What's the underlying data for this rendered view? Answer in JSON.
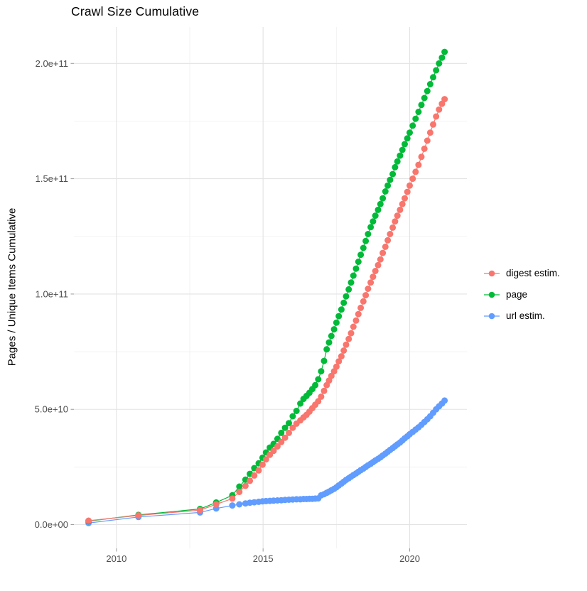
{
  "title": "Crawl Size Cumulative",
  "axes": {
    "x": {
      "domain": [
        2008.55,
        2021.95
      ],
      "ticks": [
        2010,
        2015,
        2020
      ],
      "tick_labels": [
        "2010",
        "2015",
        "2020"
      ],
      "minor_ticks": [
        2012.5,
        2017.5
      ]
    },
    "y": {
      "label": "Pages / Unique Items Cumulative",
      "unit": "billion (1e9)",
      "domain": [
        -10.3,
        215.8
      ],
      "ticks": [
        0,
        50,
        100,
        150,
        200
      ],
      "tick_labels": [
        "0.0e+00",
        "5.0e+10",
        "1.0e+11",
        "1.5e+11",
        "2.0e+11"
      ],
      "minor_ticks": [
        25,
        75,
        125,
        175
      ]
    }
  },
  "legend": {
    "position": "right",
    "items": [
      {
        "label": "digest estim.",
        "color": "#F8766D",
        "key": "digest"
      },
      {
        "label": "page",
        "color": "#00BA38",
        "key": "page"
      },
      {
        "label": "url estim.",
        "color": "#619CFF",
        "key": "url"
      }
    ]
  },
  "colors": {
    "digest": "#F8766D",
    "page": "#00BA38",
    "url": "#619CFF",
    "grid_major": "#e3e3e3",
    "grid_minor": "#f1f1f1",
    "tick": "#999999",
    "tick_text": "#4d4d4d"
  },
  "chart_data": {
    "type": "scatter",
    "title": "Crawl Size Cumulative",
    "xlabel": "",
    "ylabel": "Pages / Unique Items Cumulative",
    "x_unit": "year",
    "value_unit": "billion pages / items (1e9)",
    "xlim": [
      2008.55,
      2021.95
    ],
    "ylim_displayed": [
      "0.0e+00",
      "2.0e+11"
    ],
    "grid": true,
    "legend_position": "right",
    "draw_order": [
      "url",
      "page",
      "digest"
    ],
    "series": [
      {
        "name": "page",
        "color": "#00BA38",
        "points": [
          [
            2009.05,
            1.5
          ],
          [
            2010.75,
            4.2
          ],
          [
            2012.85,
            6.8
          ],
          [
            2013.4,
            9.6
          ],
          [
            2013.95,
            12.7
          ],
          [
            2014.19,
            16.5
          ],
          [
            2014.4,
            19.5
          ],
          [
            2014.55,
            22.0
          ],
          [
            2014.7,
            24.5
          ],
          [
            2014.85,
            26.6
          ],
          [
            2014.98,
            29.0
          ],
          [
            2015.1,
            31.3
          ],
          [
            2015.23,
            33.4
          ],
          [
            2015.36,
            35.0
          ],
          [
            2015.49,
            37.2
          ],
          [
            2015.62,
            39.8
          ],
          [
            2015.75,
            42.0
          ],
          [
            2015.88,
            44.0
          ],
          [
            2016.01,
            47.0
          ],
          [
            2016.14,
            49.3
          ],
          [
            2016.27,
            52.5
          ],
          [
            2016.38,
            54.5
          ],
          [
            2016.48,
            55.8
          ],
          [
            2016.58,
            57.2
          ],
          [
            2016.68,
            58.8
          ],
          [
            2016.78,
            60.5
          ],
          [
            2016.88,
            63.0
          ],
          [
            2016.98,
            66.5
          ],
          [
            2017.08,
            71.0
          ],
          [
            2017.17,
            76.0
          ],
          [
            2017.25,
            79.0
          ],
          [
            2017.33,
            81.8
          ],
          [
            2017.42,
            84.7
          ],
          [
            2017.5,
            87.6
          ],
          [
            2017.58,
            90.4
          ],
          [
            2017.67,
            93.3
          ],
          [
            2017.75,
            96.2
          ],
          [
            2017.83,
            99.0
          ],
          [
            2017.92,
            102.0
          ],
          [
            2018.0,
            105.0
          ],
          [
            2018.08,
            108.0
          ],
          [
            2018.17,
            111.0
          ],
          [
            2018.25,
            114.0
          ],
          [
            2018.33,
            117.0
          ],
          [
            2018.42,
            120.0
          ],
          [
            2018.5,
            123.0
          ],
          [
            2018.58,
            126.0
          ],
          [
            2018.67,
            129.0
          ],
          [
            2018.75,
            131.5
          ],
          [
            2018.83,
            134.0
          ],
          [
            2018.92,
            136.5
          ],
          [
            2019.0,
            139.0
          ],
          [
            2019.08,
            141.5
          ],
          [
            2019.17,
            144.5
          ],
          [
            2019.25,
            147.0
          ],
          [
            2019.33,
            149.5
          ],
          [
            2019.42,
            152.0
          ],
          [
            2019.5,
            155.0
          ],
          [
            2019.58,
            157.5
          ],
          [
            2019.67,
            160.0
          ],
          [
            2019.75,
            162.5
          ],
          [
            2019.83,
            165.0
          ],
          [
            2019.92,
            167.5
          ],
          [
            2020.0,
            170.0
          ],
          [
            2020.1,
            173.0
          ],
          [
            2020.2,
            176.0
          ],
          [
            2020.3,
            179.0
          ],
          [
            2020.4,
            182.0
          ],
          [
            2020.5,
            185.0
          ],
          [
            2020.6,
            188.0
          ],
          [
            2020.7,
            191.0
          ],
          [
            2020.8,
            194.0
          ],
          [
            2020.9,
            197.0
          ],
          [
            2021.0,
            200.0
          ],
          [
            2021.1,
            202.5
          ],
          [
            2021.19,
            205.0
          ]
        ]
      },
      {
        "name": "digest estim.",
        "color": "#F8766D",
        "points": [
          [
            2009.05,
            1.7
          ],
          [
            2010.75,
            4.0
          ],
          [
            2012.85,
            6.3
          ],
          [
            2013.4,
            8.8
          ],
          [
            2013.95,
            11.3
          ],
          [
            2014.19,
            14.2
          ],
          [
            2014.4,
            16.8
          ],
          [
            2014.55,
            19.0
          ],
          [
            2014.7,
            21.3
          ],
          [
            2014.85,
            23.5
          ],
          [
            2014.98,
            26.0
          ],
          [
            2015.1,
            28.3
          ],
          [
            2015.23,
            30.3
          ],
          [
            2015.36,
            32.0
          ],
          [
            2015.49,
            33.9
          ],
          [
            2015.62,
            35.8
          ],
          [
            2015.75,
            37.7
          ],
          [
            2015.88,
            39.8
          ],
          [
            2016.01,
            42.0
          ],
          [
            2016.14,
            43.8
          ],
          [
            2016.27,
            45.2
          ],
          [
            2016.38,
            46.5
          ],
          [
            2016.48,
            47.6
          ],
          [
            2016.58,
            49.0
          ],
          [
            2016.68,
            50.5
          ],
          [
            2016.78,
            52.0
          ],
          [
            2016.88,
            53.5
          ],
          [
            2016.98,
            55.5
          ],
          [
            2017.08,
            58.0
          ],
          [
            2017.17,
            60.5
          ],
          [
            2017.25,
            62.5
          ],
          [
            2017.33,
            64.5
          ],
          [
            2017.42,
            66.5
          ],
          [
            2017.5,
            68.5
          ],
          [
            2017.58,
            70.8
          ],
          [
            2017.67,
            73.0
          ],
          [
            2017.75,
            75.5
          ],
          [
            2017.83,
            78.0
          ],
          [
            2017.92,
            80.5
          ],
          [
            2018.0,
            83.0
          ],
          [
            2018.08,
            85.8
          ],
          [
            2018.17,
            88.5
          ],
          [
            2018.25,
            91.3
          ],
          [
            2018.33,
            94.0
          ],
          [
            2018.42,
            96.8
          ],
          [
            2018.5,
            99.5
          ],
          [
            2018.58,
            102.3
          ],
          [
            2018.67,
            105.0
          ],
          [
            2018.75,
            107.5
          ],
          [
            2018.83,
            110.0
          ],
          [
            2018.92,
            112.5
          ],
          [
            2019.0,
            115.0
          ],
          [
            2019.08,
            117.8
          ],
          [
            2019.17,
            120.5
          ],
          [
            2019.25,
            123.3
          ],
          [
            2019.33,
            126.0
          ],
          [
            2019.42,
            128.8
          ],
          [
            2019.5,
            131.5
          ],
          [
            2019.58,
            134.0
          ],
          [
            2019.67,
            136.5
          ],
          [
            2019.75,
            139.0
          ],
          [
            2019.83,
            141.5
          ],
          [
            2019.92,
            144.3
          ],
          [
            2020.0,
            147.0
          ],
          [
            2020.1,
            150.0
          ],
          [
            2020.2,
            153.0
          ],
          [
            2020.3,
            156.0
          ],
          [
            2020.4,
            159.5
          ],
          [
            2020.5,
            163.0
          ],
          [
            2020.6,
            166.5
          ],
          [
            2020.7,
            170.0
          ],
          [
            2020.8,
            173.5
          ],
          [
            2020.9,
            177.0
          ],
          [
            2021.0,
            180.0
          ],
          [
            2021.1,
            182.5
          ],
          [
            2021.19,
            184.5
          ]
        ]
      },
      {
        "name": "url estim.",
        "color": "#619CFF",
        "points": [
          [
            2009.05,
            0.7
          ],
          [
            2010.75,
            3.3
          ],
          [
            2012.85,
            5.3
          ],
          [
            2013.4,
            7.0
          ],
          [
            2013.95,
            8.3
          ],
          [
            2014.19,
            8.8
          ],
          [
            2014.4,
            9.2
          ],
          [
            2014.55,
            9.5
          ],
          [
            2014.7,
            9.7
          ],
          [
            2014.85,
            9.9
          ],
          [
            2014.98,
            10.1
          ],
          [
            2015.1,
            10.2
          ],
          [
            2015.23,
            10.3
          ],
          [
            2015.36,
            10.4
          ],
          [
            2015.49,
            10.5
          ],
          [
            2015.62,
            10.6
          ],
          [
            2015.75,
            10.7
          ],
          [
            2015.88,
            10.8
          ],
          [
            2016.01,
            10.9
          ],
          [
            2016.14,
            11.0
          ],
          [
            2016.27,
            11.0
          ],
          [
            2016.38,
            11.1
          ],
          [
            2016.48,
            11.1
          ],
          [
            2016.58,
            11.2
          ],
          [
            2016.68,
            11.2
          ],
          [
            2016.78,
            11.3
          ],
          [
            2016.88,
            11.4
          ],
          [
            2016.98,
            12.7
          ],
          [
            2017.08,
            13.2
          ],
          [
            2017.17,
            13.8
          ],
          [
            2017.25,
            14.3
          ],
          [
            2017.33,
            14.9
          ],
          [
            2017.42,
            15.5
          ],
          [
            2017.5,
            16.2
          ],
          [
            2017.58,
            17.0
          ],
          [
            2017.67,
            17.8
          ],
          [
            2017.75,
            18.6
          ],
          [
            2017.83,
            19.4
          ],
          [
            2017.92,
            20.1
          ],
          [
            2018.0,
            20.8
          ],
          [
            2018.08,
            21.5
          ],
          [
            2018.17,
            22.2
          ],
          [
            2018.25,
            22.9
          ],
          [
            2018.33,
            23.6
          ],
          [
            2018.42,
            24.3
          ],
          [
            2018.5,
            25.0
          ],
          [
            2018.58,
            25.7
          ],
          [
            2018.67,
            26.4
          ],
          [
            2018.75,
            27.1
          ],
          [
            2018.83,
            27.8
          ],
          [
            2018.92,
            28.5
          ],
          [
            2019.0,
            29.2
          ],
          [
            2019.08,
            30.0
          ],
          [
            2019.17,
            30.8
          ],
          [
            2019.25,
            31.6
          ],
          [
            2019.33,
            32.4
          ],
          [
            2019.42,
            33.2
          ],
          [
            2019.5,
            34.0
          ],
          [
            2019.58,
            34.8
          ],
          [
            2019.67,
            35.6
          ],
          [
            2019.75,
            36.5
          ],
          [
            2019.83,
            37.4
          ],
          [
            2019.92,
            38.3
          ],
          [
            2020.0,
            39.2
          ],
          [
            2020.1,
            40.2
          ],
          [
            2020.2,
            41.2
          ],
          [
            2020.3,
            42.2
          ],
          [
            2020.4,
            43.3
          ],
          [
            2020.5,
            44.5
          ],
          [
            2020.6,
            45.7
          ],
          [
            2020.7,
            47.0
          ],
          [
            2020.8,
            48.5
          ],
          [
            2020.9,
            50.0
          ],
          [
            2021.0,
            51.3
          ],
          [
            2021.1,
            52.5
          ],
          [
            2021.19,
            53.8
          ]
        ]
      }
    ]
  }
}
